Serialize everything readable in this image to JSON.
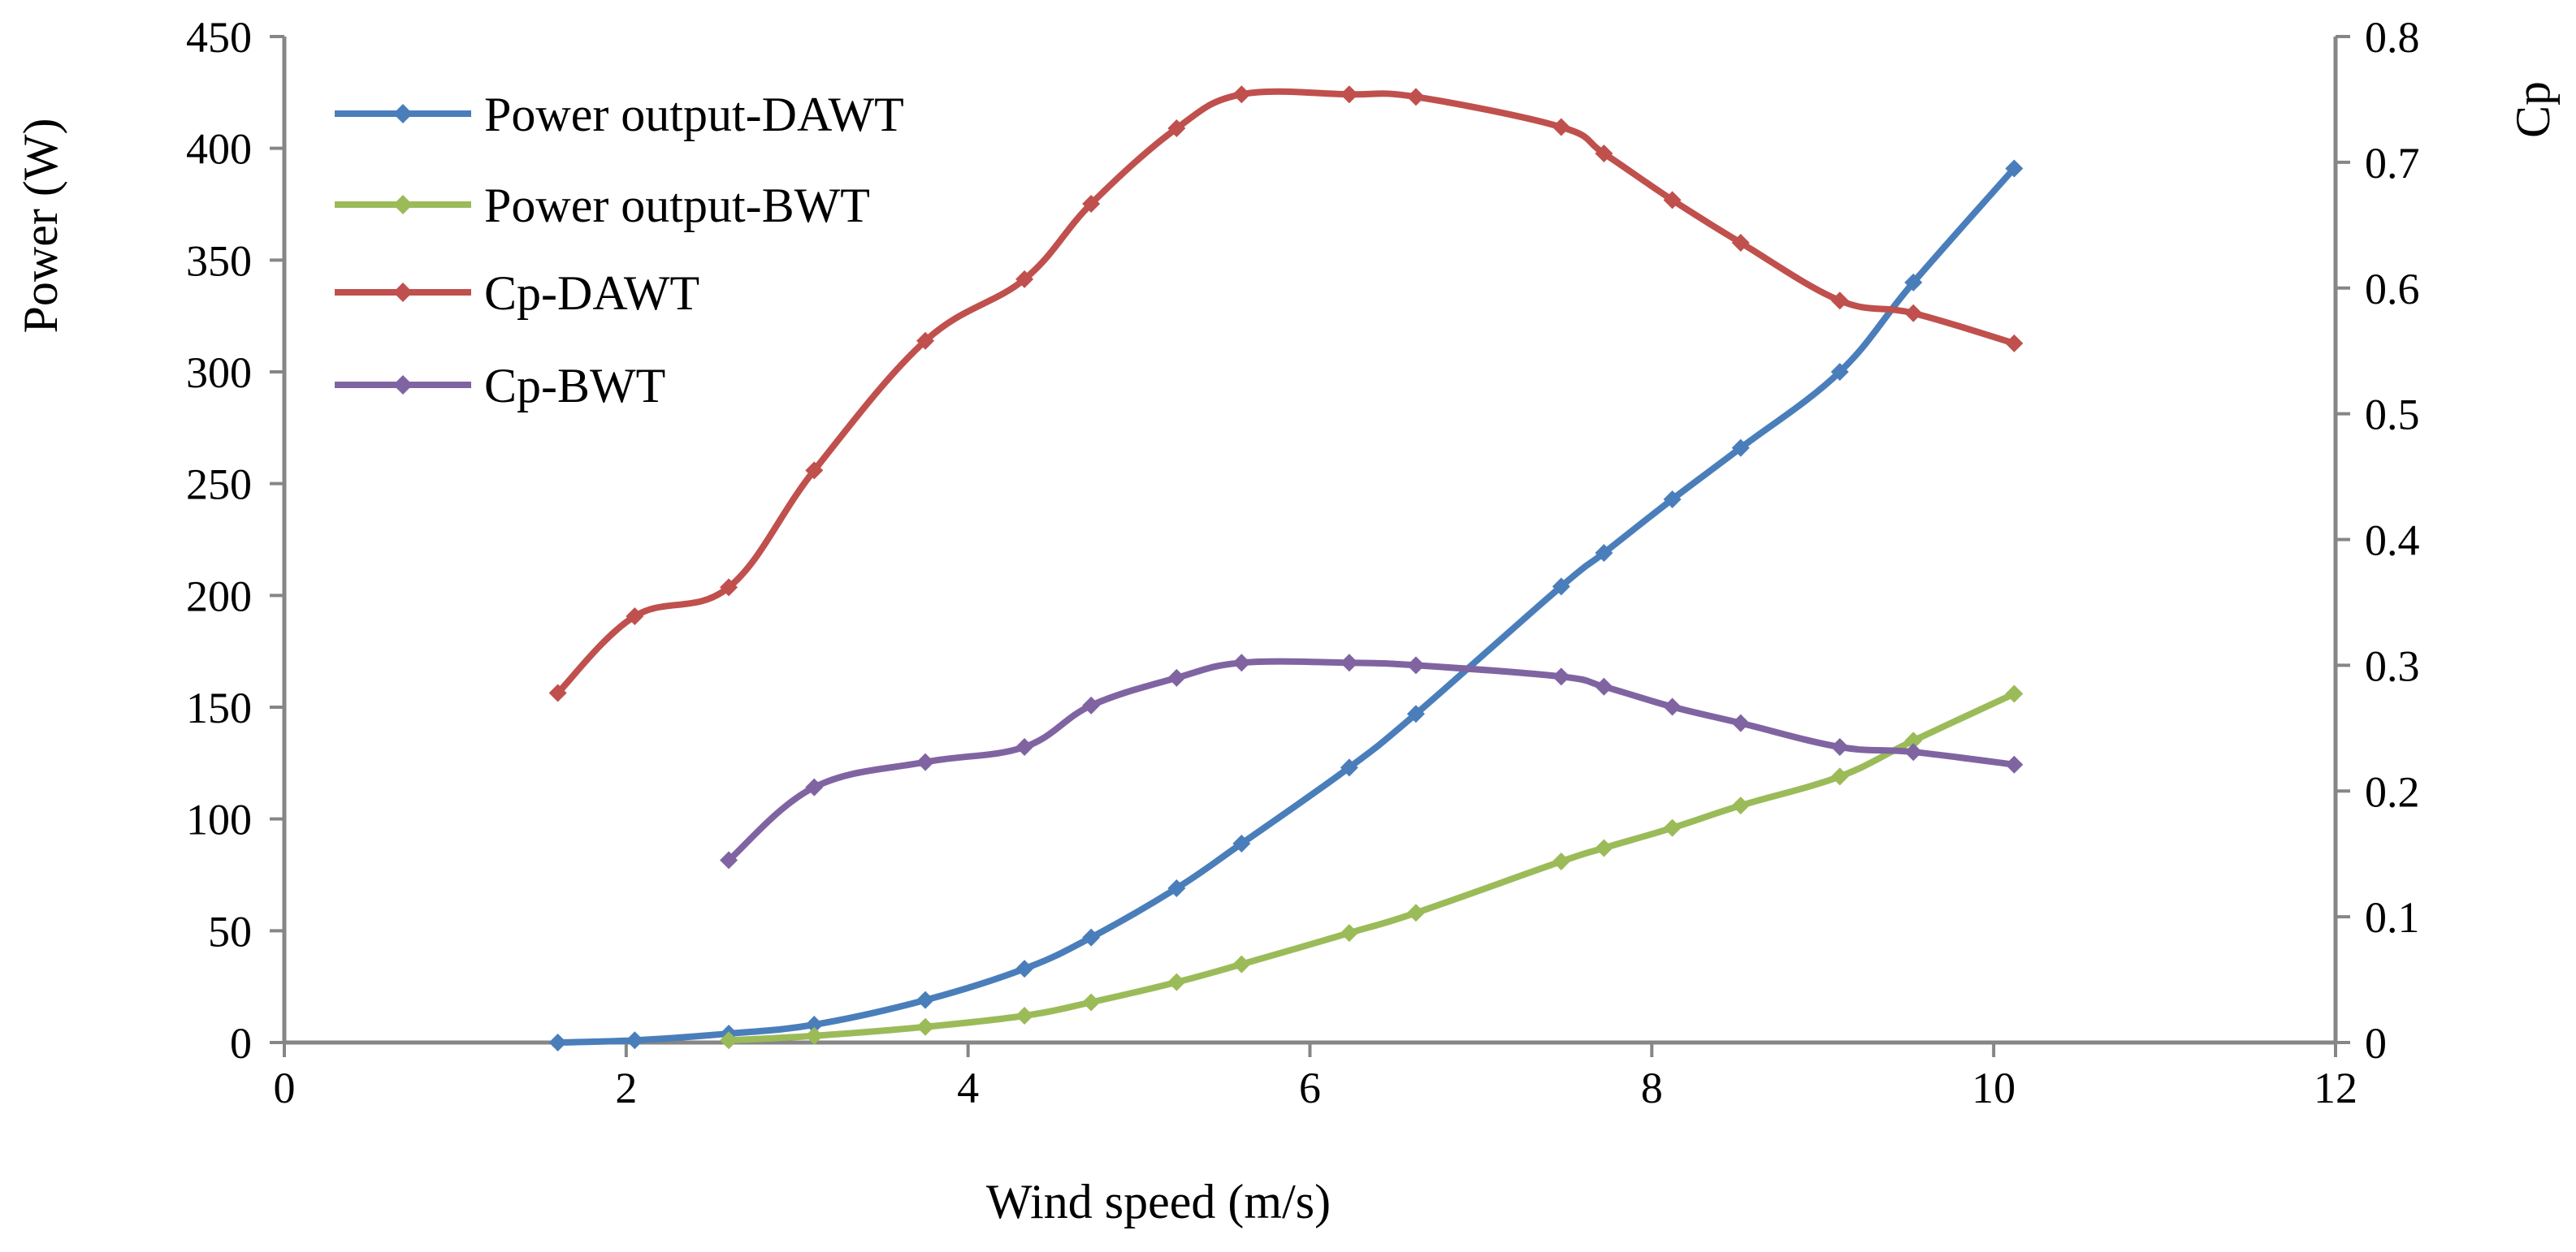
{
  "chart_data": {
    "type": "line",
    "title": "",
    "xlabel": "Wind speed (m/s)",
    "ylabel_left": "Power (W)",
    "ylabel_right": "Cp",
    "xlim": [
      0,
      12
    ],
    "ylim_left": [
      0,
      450
    ],
    "ylim_right": [
      0,
      0.8
    ],
    "x_ticks": [
      0,
      2,
      4,
      6,
      8,
      10,
      12
    ],
    "y_ticks_left": [
      0,
      50,
      100,
      150,
      200,
      250,
      300,
      350,
      400,
      450
    ],
    "y_ticks_right": [
      0,
      0.1,
      0.2,
      0.3,
      0.4,
      0.5,
      0.6,
      0.7,
      0.8
    ],
    "grid": false,
    "legend_position": "top-left",
    "series": [
      {
        "name": "Power output-DAWT",
        "axis": "left",
        "color": "#4A7EBB",
        "x": [
          1.6,
          2.05,
          2.6,
          3.1,
          3.75,
          4.33,
          4.72,
          5.22,
          5.6,
          6.23,
          6.62,
          7.47,
          7.72,
          8.12,
          8.52,
          9.1,
          9.53,
          10.12
        ],
        "y": [
          0,
          1,
          4,
          8,
          19,
          33,
          47,
          69,
          89,
          123,
          147,
          204,
          219,
          243,
          266,
          300,
          340,
          391
        ]
      },
      {
        "name": "Power output-BWT",
        "axis": "left",
        "color": "#9BBB59",
        "x": [
          2.6,
          3.1,
          3.75,
          4.33,
          4.72,
          5.22,
          5.6,
          6.23,
          6.62,
          7.47,
          7.72,
          8.12,
          8.52,
          9.1,
          9.53,
          10.12
        ],
        "y": [
          1,
          3,
          7,
          12,
          18,
          27,
          35,
          49,
          58,
          81,
          87,
          96,
          106,
          119,
          135,
          156
        ]
      },
      {
        "name": "Cp-DAWT",
        "axis": "right",
        "color": "#C0504D",
        "x": [
          1.6,
          2.05,
          2.6,
          3.1,
          3.75,
          4.33,
          4.72,
          5.22,
          5.6,
          6.23,
          6.62,
          7.47,
          7.72,
          8.12,
          8.52,
          9.1,
          9.53,
          10.12
        ],
        "y": [
          0.278,
          0.339,
          0.362,
          0.455,
          0.558,
          0.607,
          0.667,
          0.727,
          0.754,
          0.754,
          0.752,
          0.728,
          0.707,
          0.67,
          0.636,
          0.59,
          0.58,
          0.556
        ]
      },
      {
        "name": "Cp-BWT",
        "axis": "right",
        "color": "#8064A2",
        "x": [
          2.6,
          3.1,
          3.75,
          4.33,
          4.72,
          5.22,
          5.6,
          6.23,
          6.62,
          7.47,
          7.72,
          8.12,
          8.52,
          9.1,
          9.53,
          10.12
        ],
        "y": [
          0.145,
          0.203,
          0.223,
          0.235,
          0.268,
          0.29,
          0.302,
          0.302,
          0.3,
          0.291,
          0.283,
          0.267,
          0.254,
          0.235,
          0.231,
          0.221
        ]
      }
    ]
  }
}
